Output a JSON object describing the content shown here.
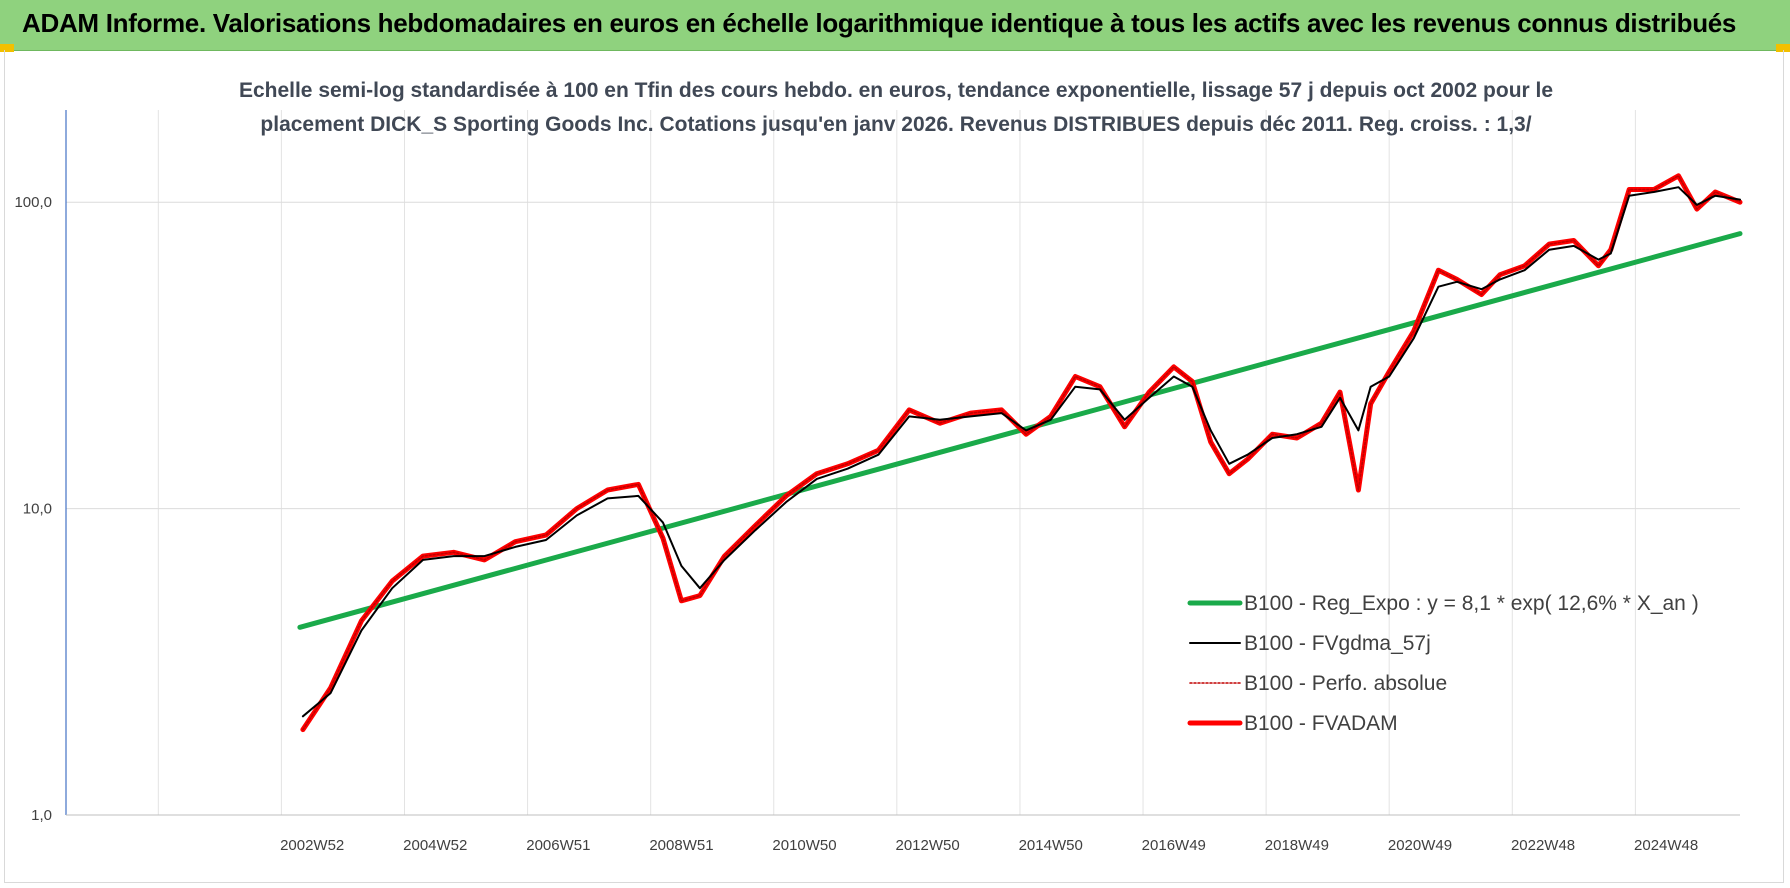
{
  "banner": {
    "title": "ADAM Informe. Valorisations hebdomadaires en euros en échelle logarithmique identique à tous les actifs avec les revenus connus distribués",
    "background": "#8fd27e"
  },
  "chart_data": {
    "type": "line",
    "title_lines": [
      "Echelle semi-log standardisée à 100 en Tfin des cours hebdo. en euros, tendance exponentielle, lissage 57 j depuis oct 2002 pour le",
      "placement DICK_S Sporting Goods Inc. Cotations jusqu'en janv 2026. Revenus DISTRIBUES depuis déc 2011. Reg. croiss. : 1,3/"
    ],
    "y_scale": "log",
    "ylim": [
      1,
      200
    ],
    "y_ticks": [
      {
        "value": 1,
        "label": "1,0"
      },
      {
        "value": 10,
        "label": "10,0"
      },
      {
        "value": 100,
        "label": "100,0"
      }
    ],
    "xlim": [
      1999.0,
      2026.2
    ],
    "x_ticks": [
      {
        "x": 2003.0,
        "label": "2002W52"
      },
      {
        "x": 2005.0,
        "label": "2004W52"
      },
      {
        "x": 2007.0,
        "label": "2006W51"
      },
      {
        "x": 2009.0,
        "label": "2008W51"
      },
      {
        "x": 2011.0,
        "label": "2010W50"
      },
      {
        "x": 2013.0,
        "label": "2012W50"
      },
      {
        "x": 2015.0,
        "label": "2014W50"
      },
      {
        "x": 2017.0,
        "label": "2016W49"
      },
      {
        "x": 2019.0,
        "label": "2018W49"
      },
      {
        "x": 2021.0,
        "label": "2020W49"
      },
      {
        "x": 2023.0,
        "label": "2022W48"
      },
      {
        "x": 2025.0,
        "label": "2024W48"
      }
    ],
    "grid": "vertical and horizontal",
    "legend_position": "bottom-right",
    "series": [
      {
        "name": "B100 - Reg_Expo : y = 8,1 * exp( 12,6% *  X_an )",
        "color": "#1aaa4a",
        "style": "solid-thick",
        "x": [
          2002.8,
          2026.2
        ],
        "y": [
          4.1,
          79.0
        ]
      },
      {
        "name": "B100 - FVgdma_57j",
        "color": "#000000",
        "style": "solid",
        "x": [
          2002.85,
          2003.3,
          2003.8,
          2004.3,
          2004.8,
          2005.3,
          2005.8,
          2006.3,
          2006.8,
          2007.3,
          2007.8,
          2008.3,
          2008.7,
          2009.0,
          2009.3,
          2009.7,
          2010.2,
          2010.7,
          2011.2,
          2011.7,
          2012.2,
          2012.7,
          2013.2,
          2013.7,
          2014.2,
          2014.6,
          2015.0,
          2015.4,
          2015.8,
          2016.2,
          2016.6,
          2017.0,
          2017.3,
          2017.6,
          2017.9,
          2018.2,
          2018.6,
          2019.0,
          2019.4,
          2019.7,
          2020.0,
          2020.2,
          2020.5,
          2020.9,
          2021.3,
          2021.6,
          2022.0,
          2022.3,
          2022.7,
          2023.1,
          2023.5,
          2023.9,
          2024.1,
          2024.4,
          2024.8,
          2025.2,
          2025.5,
          2025.8,
          2026.2
        ],
        "y": [
          2.1,
          2.5,
          4.0,
          5.5,
          6.8,
          7.0,
          7.0,
          7.5,
          7.9,
          9.5,
          10.8,
          11.0,
          9.0,
          6.5,
          5.5,
          6.8,
          8.5,
          10.5,
          12.5,
          13.5,
          15.0,
          20.0,
          19.5,
          20.0,
          20.5,
          18.0,
          19.5,
          25.0,
          24.5,
          19.5,
          23.0,
          27.0,
          25.0,
          18.0,
          14.0,
          15.0,
          17.0,
          17.5,
          18.5,
          23.0,
          18.0,
          25.0,
          27.0,
          36.0,
          53.0,
          55.0,
          52.0,
          56.0,
          60.0,
          70.0,
          72.0,
          65.0,
          68.0,
          105.0,
          108.0,
          112.0,
          98.0,
          105.0,
          102.0
        ]
      },
      {
        "name": "B100 - Perfo. absolue",
        "color": "#c00000",
        "style": "dotted",
        "x": [
          2002.85,
          2003.3,
          2003.8,
          2004.3,
          2004.8,
          2005.3,
          2005.8,
          2006.3,
          2006.8,
          2007.3,
          2007.8,
          2008.3,
          2008.7,
          2009.0,
          2009.3,
          2009.7,
          2010.2,
          2010.7,
          2011.2,
          2011.7,
          2012.2,
          2012.7,
          2013.2,
          2013.7,
          2014.2,
          2014.6,
          2015.0,
          2015.4,
          2015.8,
          2016.2,
          2016.6,
          2017.0,
          2017.3,
          2017.6,
          2017.9,
          2018.2,
          2018.6,
          2019.0,
          2019.4,
          2019.7,
          2020.0,
          2020.2,
          2020.5,
          2020.9,
          2021.3,
          2021.6,
          2022.0,
          2022.3,
          2022.7,
          2023.1,
          2023.5,
          2023.9,
          2024.1,
          2024.4,
          2024.8,
          2025.2,
          2025.5,
          2025.8,
          2026.2
        ],
        "y": [
          1.9,
          2.6,
          4.3,
          5.8,
          7.0,
          7.2,
          6.8,
          7.8,
          8.2,
          10.0,
          11.5,
          12.0,
          8.0,
          5.0,
          5.2,
          7.0,
          8.8,
          11.0,
          13.0,
          14.0,
          15.5,
          21.0,
          19.0,
          20.5,
          21.0,
          17.5,
          20.0,
          27.0,
          25.0,
          18.5,
          24.0,
          29.0,
          26.0,
          16.5,
          13.0,
          14.5,
          17.5,
          17.0,
          19.0,
          24.0,
          11.5,
          22.0,
          28.0,
          38.0,
          60.0,
          56.0,
          50.0,
          58.0,
          62.0,
          73.0,
          75.0,
          62.0,
          70.0,
          110.0,
          110.0,
          122.0,
          95.0,
          108.0,
          100.0
        ]
      },
      {
        "name": "B100 - FVADAM",
        "color": "#ff0000",
        "style": "solid-thick",
        "x": [
          2002.85,
          2003.3,
          2003.8,
          2004.3,
          2004.8,
          2005.3,
          2005.8,
          2006.3,
          2006.8,
          2007.3,
          2007.8,
          2008.3,
          2008.7,
          2009.0,
          2009.3,
          2009.7,
          2010.2,
          2010.7,
          2011.2,
          2011.7,
          2012.2,
          2012.7,
          2013.2,
          2013.7,
          2014.2,
          2014.6,
          2015.0,
          2015.4,
          2015.8,
          2016.2,
          2016.6,
          2017.0,
          2017.3,
          2017.6,
          2017.9,
          2018.2,
          2018.6,
          2019.0,
          2019.4,
          2019.7,
          2020.0,
          2020.2,
          2020.5,
          2020.9,
          2021.3,
          2021.6,
          2022.0,
          2022.3,
          2022.7,
          2023.1,
          2023.5,
          2023.9,
          2024.1,
          2024.4,
          2024.8,
          2025.2,
          2025.5,
          2025.8,
          2026.2
        ],
        "y": [
          1.9,
          2.6,
          4.3,
          5.8,
          7.0,
          7.2,
          6.8,
          7.8,
          8.2,
          10.0,
          11.5,
          12.0,
          8.0,
          5.0,
          5.2,
          7.0,
          8.8,
          11.0,
          13.0,
          14.0,
          15.5,
          21.0,
          19.0,
          20.5,
          21.0,
          17.5,
          20.0,
          27.0,
          25.0,
          18.5,
          24.0,
          29.0,
          26.0,
          16.5,
          13.0,
          14.5,
          17.5,
          17.0,
          19.0,
          24.0,
          11.5,
          22.0,
          28.0,
          38.0,
          60.0,
          56.0,
          50.0,
          58.0,
          62.0,
          73.0,
          75.0,
          62.0,
          70.0,
          110.0,
          110.0,
          122.0,
          95.0,
          108.0,
          100.0
        ]
      }
    ]
  }
}
